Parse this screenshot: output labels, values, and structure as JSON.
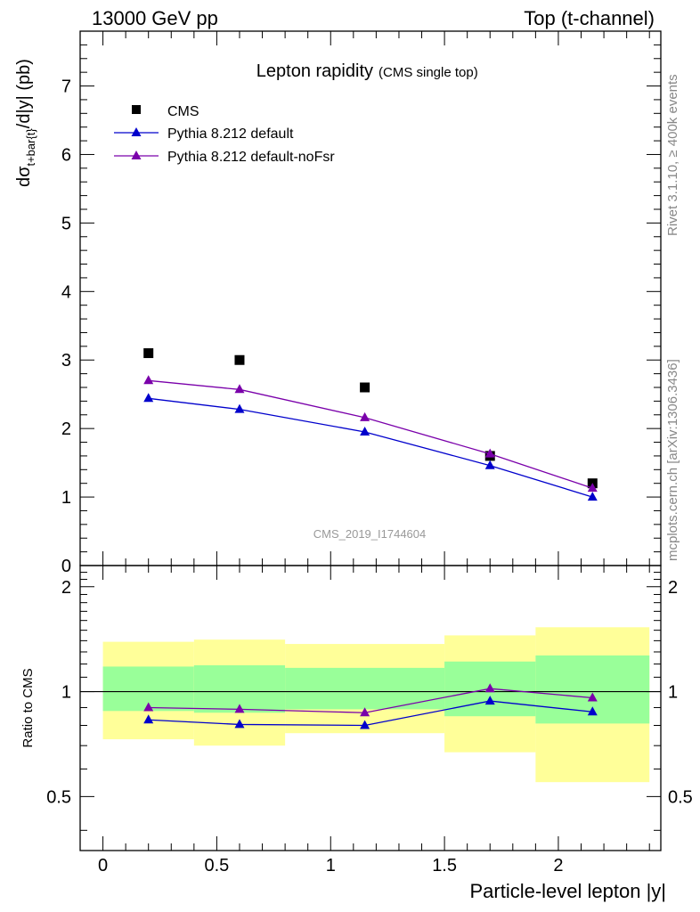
{
  "header": {
    "left": "13000 GeV pp",
    "right": "Top (t-channel)"
  },
  "side": {
    "rivet": "Rivet 3.1.10, ≥ 400k events",
    "mcplots": "mcplots.cern.ch [arXiv:1306.3436]"
  },
  "colors": {
    "cms": "#000000",
    "default": "#0000cc",
    "noFsr": "#7a00aa",
    "band_outer": "#ffff99",
    "band_inner": "#99ff99"
  },
  "chart_data": [
    {
      "type": "line",
      "title_main": "Lepton rapidity",
      "title_sub": "(CMS single top)",
      "ylabel_main": "dσ",
      "ylabel_sub": "t+bar{t}",
      "ylabel_tail": "/d|y|  (pb)",
      "watermark": "CMS_2019_I1744604",
      "xlim": [
        -0.1,
        2.45
      ],
      "ylim": [
        0,
        7.8
      ],
      "yticks": [
        0,
        1,
        2,
        3,
        4,
        5,
        6,
        7
      ],
      "ytick_labels": [
        "0",
        "1",
        "2",
        "3",
        "4",
        "5",
        "6",
        "7"
      ],
      "legend": {
        "position": "top-left",
        "entries": [
          "CMS",
          "Pythia 8.212 default",
          "Pythia 8.212 default-noFsr"
        ]
      },
      "series": [
        {
          "name": "CMS",
          "x": [
            0.2,
            0.6,
            1.15,
            1.7,
            2.15
          ],
          "y": [
            3.1,
            3.0,
            2.6,
            1.6,
            1.2
          ]
        },
        {
          "name": "Pythia 8.212 default",
          "x": [
            0.2,
            0.6,
            1.15,
            1.7,
            2.15
          ],
          "y": [
            2.44,
            2.28,
            1.95,
            1.46,
            1.0
          ]
        },
        {
          "name": "Pythia 8.212 default-noFsr",
          "x": [
            0.2,
            0.6,
            1.15,
            1.7,
            2.15
          ],
          "y": [
            2.7,
            2.57,
            2.16,
            1.63,
            1.13
          ]
        }
      ]
    },
    {
      "type": "line",
      "ylabel": "Ratio to CMS",
      "xlabel": "Particle-level lepton |y|",
      "xlim": [
        -0.1,
        2.45
      ],
      "ylim": [
        0.35,
        2.3
      ],
      "yticks": [
        0.5,
        1,
        2
      ],
      "ytick_labels": [
        "0.5",
        "1",
        "2"
      ],
      "xticks": [
        0,
        0.5,
        1,
        1.5,
        2
      ],
      "xtick_labels": [
        "0",
        "0.5",
        "1",
        "1.5",
        "2"
      ],
      "reference": 1,
      "bins": [
        {
          "lo": 0.0,
          "hi": 0.4,
          "outer": [
            0.73,
            1.39
          ],
          "inner": [
            0.88,
            1.18
          ]
        },
        {
          "lo": 0.4,
          "hi": 0.8,
          "outer": [
            0.7,
            1.41
          ],
          "inner": [
            0.87,
            1.19
          ]
        },
        {
          "lo": 0.8,
          "hi": 1.5,
          "outer": [
            0.76,
            1.37
          ],
          "inner": [
            0.89,
            1.17
          ]
        },
        {
          "lo": 1.5,
          "hi": 1.9,
          "outer": [
            0.67,
            1.45
          ],
          "inner": [
            0.85,
            1.22
          ]
        },
        {
          "lo": 1.9,
          "hi": 2.4,
          "outer": [
            0.55,
            1.53
          ],
          "inner": [
            0.81,
            1.27
          ]
        }
      ],
      "series": [
        {
          "name": "Pythia 8.212 default",
          "x": [
            0.2,
            0.6,
            1.15,
            1.7,
            2.15
          ],
          "y": [
            0.83,
            0.805,
            0.8,
            0.94,
            0.875
          ]
        },
        {
          "name": "Pythia 8.212 default-noFsr",
          "x": [
            0.2,
            0.6,
            1.15,
            1.7,
            2.15
          ],
          "y": [
            0.9,
            0.89,
            0.87,
            1.02,
            0.96
          ]
        }
      ]
    }
  ]
}
